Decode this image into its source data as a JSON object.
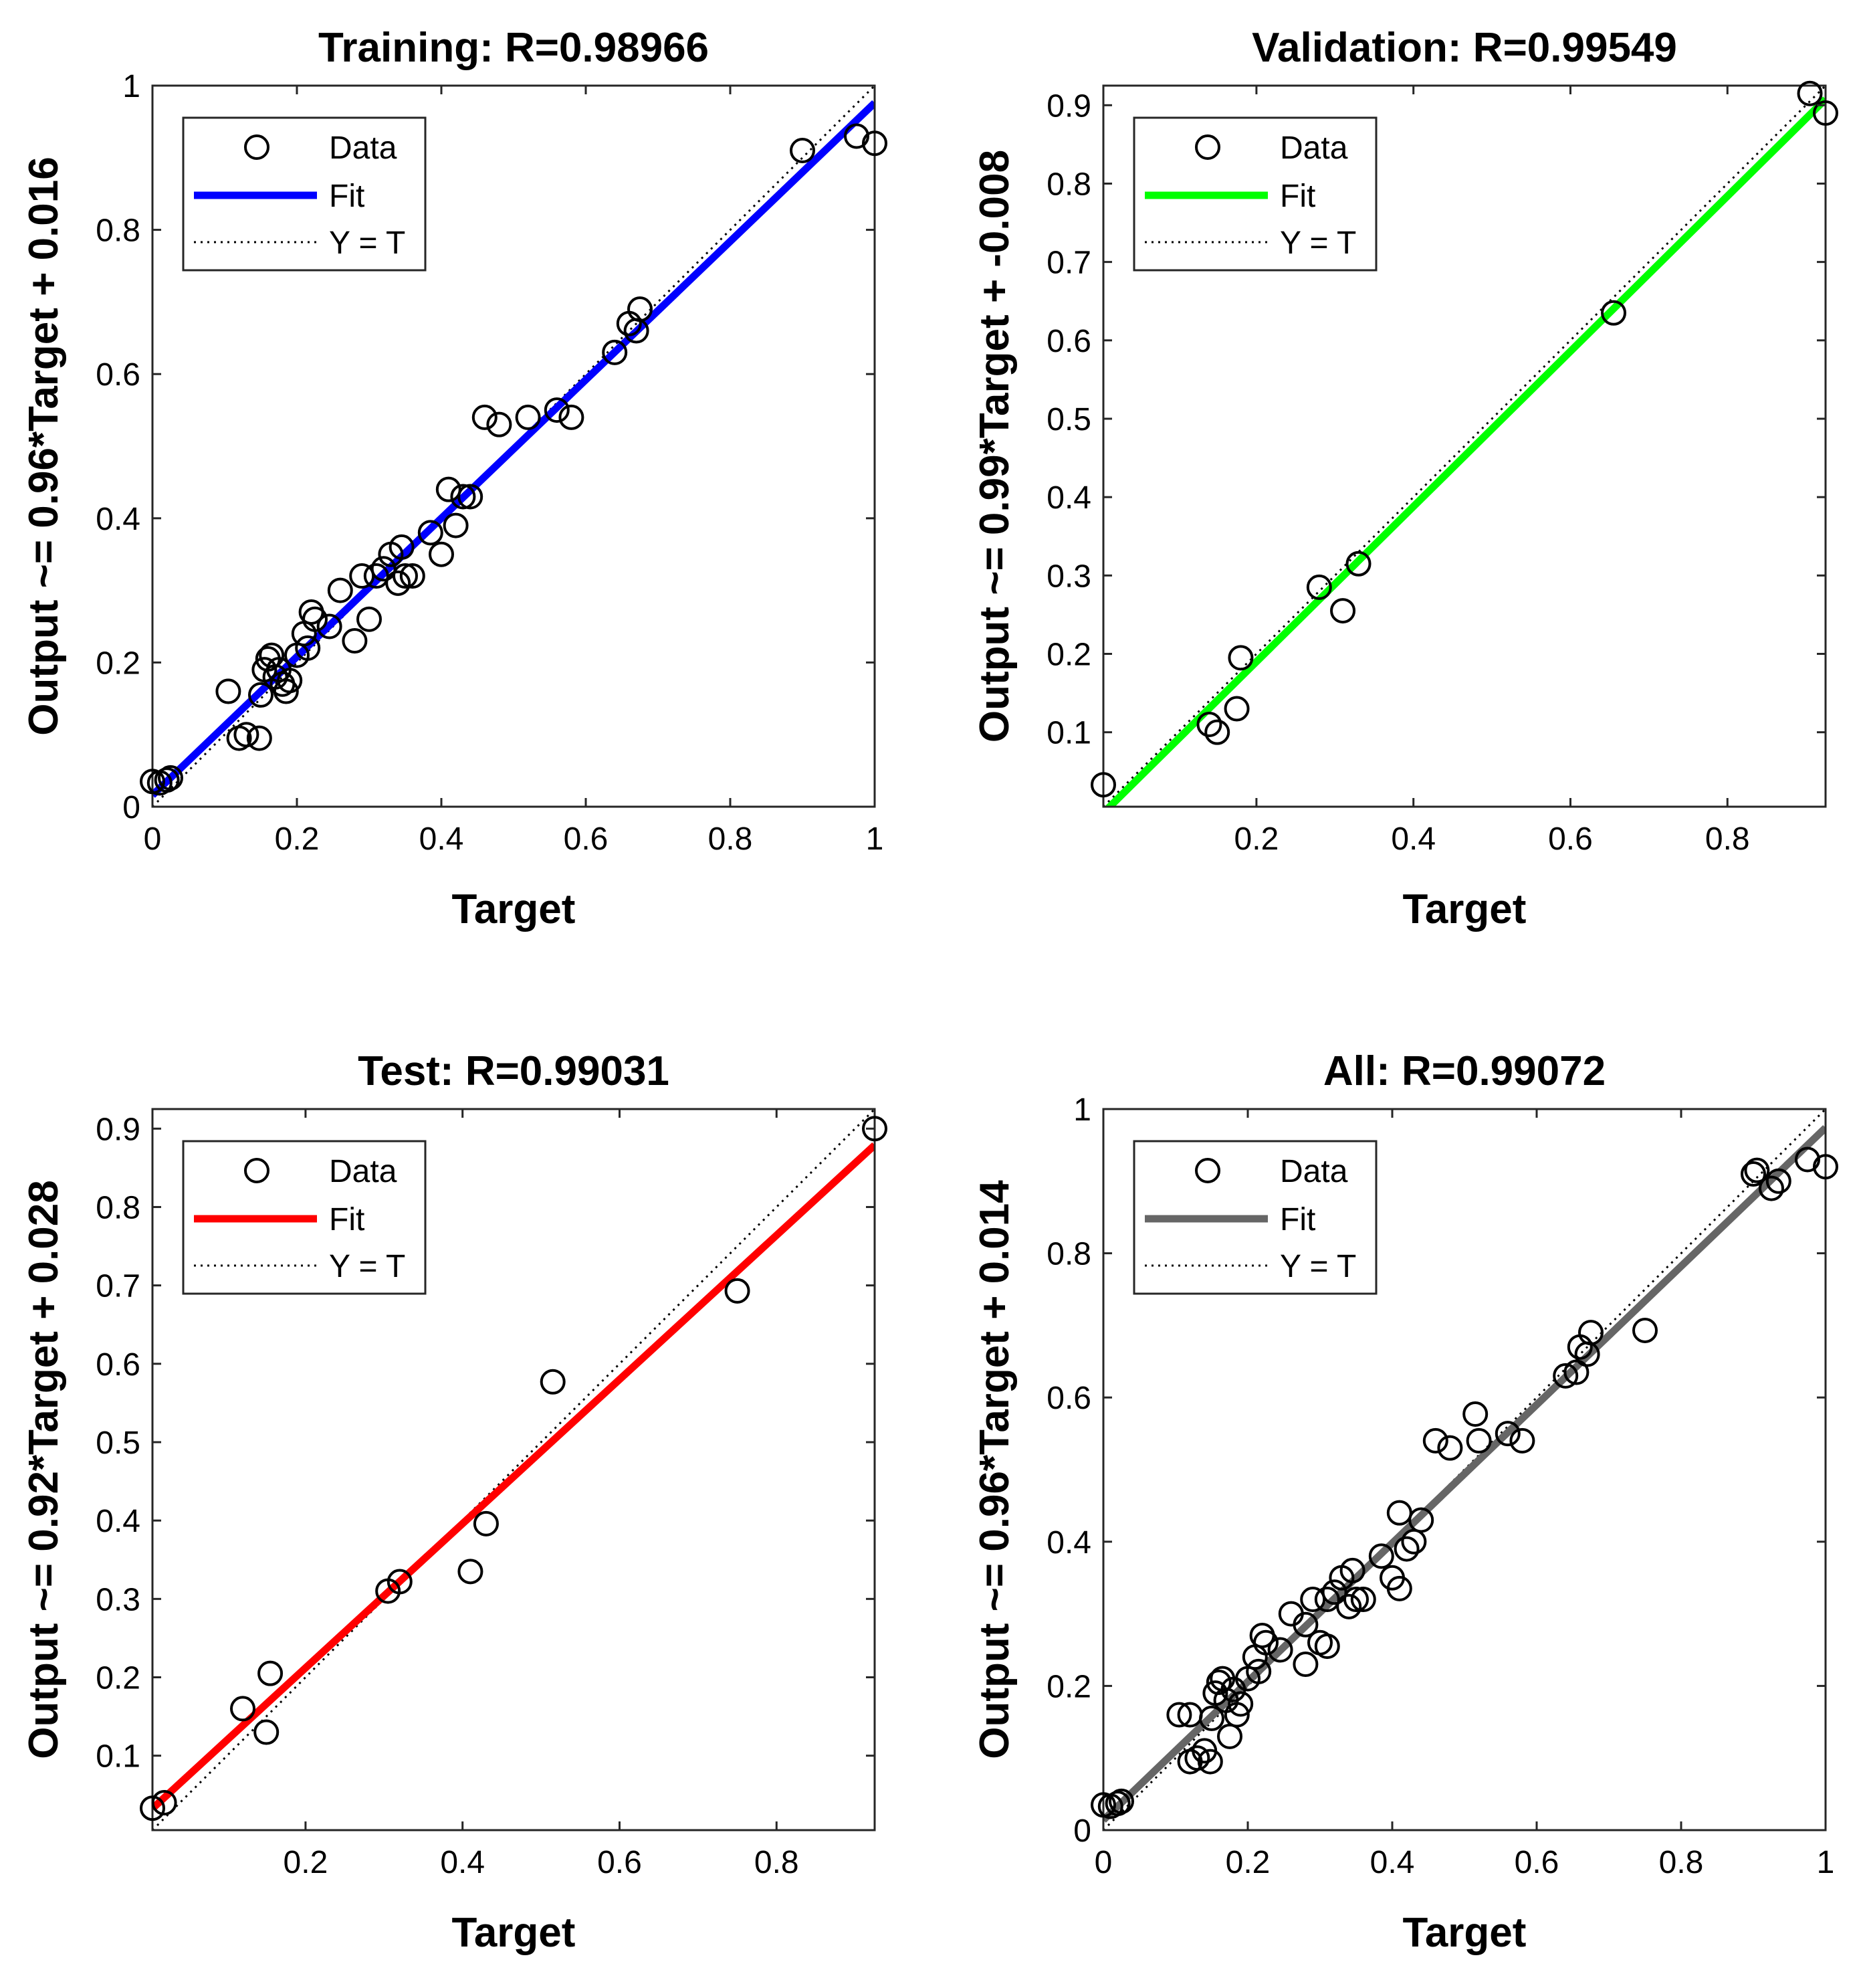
{
  "chart_data": [
    {
      "type": "scatter",
      "title": "Training: R=0.98966",
      "xlabel": "Target",
      "ylabel": "Output ~= 0.96*Target + 0.016",
      "xlim": [
        0,
        1
      ],
      "ylim": [
        0,
        1
      ],
      "xticks": [
        0,
        0.2,
        0.4,
        0.6,
        0.8,
        1
      ],
      "xtick_labels": [
        "0",
        "0.2",
        "0.4",
        "0.6",
        "0.8",
        "1"
      ],
      "yticks": [
        0,
        0.2,
        0.4,
        0.6,
        0.8,
        1
      ],
      "ytick_labels": [
        "0",
        "0.2",
        "0.4",
        "0.6",
        "0.8",
        "1"
      ],
      "fit": {
        "slope": 0.96,
        "intercept": 0.016,
        "color": "#0000ff"
      },
      "legend": [
        "Data",
        "Fit",
        "Y = T"
      ],
      "legend_position": "top-left",
      "points": [
        [
          0.0,
          0.035
        ],
        [
          0.01,
          0.033
        ],
        [
          0.02,
          0.037
        ],
        [
          0.025,
          0.04
        ],
        [
          0.105,
          0.16
        ],
        [
          0.12,
          0.095
        ],
        [
          0.13,
          0.1
        ],
        [
          0.148,
          0.095
        ],
        [
          0.15,
          0.155
        ],
        [
          0.155,
          0.19
        ],
        [
          0.16,
          0.205
        ],
        [
          0.165,
          0.21
        ],
        [
          0.17,
          0.18
        ],
        [
          0.175,
          0.19
        ],
        [
          0.18,
          0.17
        ],
        [
          0.185,
          0.16
        ],
        [
          0.19,
          0.175
        ],
        [
          0.2,
          0.21
        ],
        [
          0.21,
          0.24
        ],
        [
          0.215,
          0.22
        ],
        [
          0.22,
          0.27
        ],
        [
          0.225,
          0.26
        ],
        [
          0.245,
          0.25
        ],
        [
          0.26,
          0.3
        ],
        [
          0.28,
          0.23
        ],
        [
          0.29,
          0.32
        ],
        [
          0.3,
          0.26
        ],
        [
          0.31,
          0.32
        ],
        [
          0.32,
          0.33
        ],
        [
          0.33,
          0.35
        ],
        [
          0.34,
          0.31
        ],
        [
          0.345,
          0.36
        ],
        [
          0.35,
          0.32
        ],
        [
          0.36,
          0.32
        ],
        [
          0.385,
          0.38
        ],
        [
          0.4,
          0.35
        ],
        [
          0.41,
          0.44
        ],
        [
          0.42,
          0.39
        ],
        [
          0.43,
          0.43
        ],
        [
          0.44,
          0.43
        ],
        [
          0.46,
          0.54
        ],
        [
          0.48,
          0.53
        ],
        [
          0.52,
          0.54
        ],
        [
          0.56,
          0.55
        ],
        [
          0.58,
          0.54
        ],
        [
          0.64,
          0.63
        ],
        [
          0.66,
          0.67
        ],
        [
          0.675,
          0.69
        ],
        [
          0.67,
          0.66
        ],
        [
          0.9,
          0.91
        ],
        [
          0.975,
          0.93
        ],
        [
          1.0,
          0.92
        ]
      ]
    },
    {
      "type": "scatter",
      "title": "Validation: R=0.99549",
      "xlabel": "Target",
      "ylabel": "Output ~= 0.99*Target + -0.008",
      "xlim": [
        0.005,
        0.925
      ],
      "ylim": [
        0.005,
        0.925
      ],
      "xticks": [
        0.2,
        0.4,
        0.6,
        0.8
      ],
      "xtick_labels": [
        "0.2",
        "0.4",
        "0.6",
        "0.8"
      ],
      "yticks": [
        0.1,
        0.2,
        0.3,
        0.4,
        0.5,
        0.6,
        0.7,
        0.8,
        0.9
      ],
      "ytick_labels": [
        "0.1",
        "0.2",
        "0.3",
        "0.4",
        "0.5",
        "0.6",
        "0.7",
        "0.8",
        "0.9"
      ],
      "fit": {
        "slope": 0.99,
        "intercept": -0.008,
        "color": "#00ff00"
      },
      "legend": [
        "Data",
        "Fit",
        "Y = T"
      ],
      "legend_position": "top-left",
      "points": [
        [
          0.005,
          0.033
        ],
        [
          0.14,
          0.11
        ],
        [
          0.15,
          0.1
        ],
        [
          0.175,
          0.13
        ],
        [
          0.18,
          0.195
        ],
        [
          0.28,
          0.285
        ],
        [
          0.31,
          0.255
        ],
        [
          0.33,
          0.315
        ],
        [
          0.655,
          0.635
        ],
        [
          0.905,
          0.915
        ],
        [
          0.925,
          0.89
        ]
      ]
    },
    {
      "type": "scatter",
      "title": "Test: R=0.99031",
      "xlabel": "Target",
      "ylabel": "Output ~= 0.92*Target + 0.028",
      "xlim": [
        0.005,
        0.925
      ],
      "ylim": [
        0.005,
        0.925
      ],
      "xticks": [
        0.2,
        0.4,
        0.6,
        0.8
      ],
      "xtick_labels": [
        "0.2",
        "0.4",
        "0.6",
        "0.8"
      ],
      "yticks": [
        0.1,
        0.2,
        0.3,
        0.4,
        0.5,
        0.6,
        0.7,
        0.8,
        0.9
      ],
      "ytick_labels": [
        "0.1",
        "0.2",
        "0.3",
        "0.4",
        "0.5",
        "0.6",
        "0.7",
        "0.8",
        "0.9"
      ],
      "fit": {
        "slope": 0.92,
        "intercept": 0.028,
        "color": "#ff0000"
      },
      "legend": [
        "Data",
        "Fit",
        "Y = T"
      ],
      "legend_position": "top-left",
      "points": [
        [
          0.005,
          0.033
        ],
        [
          0.02,
          0.04
        ],
        [
          0.12,
          0.16
        ],
        [
          0.15,
          0.13
        ],
        [
          0.155,
          0.205
        ],
        [
          0.305,
          0.31
        ],
        [
          0.32,
          0.322
        ],
        [
          0.41,
          0.335
        ],
        [
          0.43,
          0.396
        ],
        [
          0.515,
          0.577
        ],
        [
          0.75,
          0.693
        ],
        [
          0.925,
          0.9
        ]
      ]
    },
    {
      "type": "scatter",
      "title": "All: R=0.99072",
      "xlabel": "Target",
      "ylabel": "Output ~= 0.96*Target + 0.014",
      "xlim": [
        0,
        1
      ],
      "ylim": [
        0,
        1
      ],
      "xticks": [
        0,
        0.2,
        0.4,
        0.6,
        0.8,
        1
      ],
      "xtick_labels": [
        "0",
        "0.2",
        "0.4",
        "0.6",
        "0.8",
        "1"
      ],
      "yticks": [
        0,
        0.2,
        0.4,
        0.6,
        0.8,
        1
      ],
      "ytick_labels": [
        "0",
        "0.2",
        "0.4",
        "0.6",
        "0.8",
        "1"
      ],
      "fit": {
        "slope": 0.96,
        "intercept": 0.014,
        "color": "#666666"
      },
      "legend": [
        "Data",
        "Fit",
        "Y = T"
      ],
      "legend_position": "top-left",
      "points": [
        [
          0.0,
          0.035
        ],
        [
          0.01,
          0.033
        ],
        [
          0.02,
          0.037
        ],
        [
          0.025,
          0.04
        ],
        [
          0.105,
          0.16
        ],
        [
          0.12,
          0.16
        ],
        [
          0.12,
          0.095
        ],
        [
          0.13,
          0.1
        ],
        [
          0.14,
          0.11
        ],
        [
          0.148,
          0.095
        ],
        [
          0.15,
          0.155
        ],
        [
          0.155,
          0.19
        ],
        [
          0.16,
          0.205
        ],
        [
          0.165,
          0.21
        ],
        [
          0.17,
          0.18
        ],
        [
          0.175,
          0.13
        ],
        [
          0.18,
          0.195
        ],
        [
          0.185,
          0.16
        ],
        [
          0.19,
          0.175
        ],
        [
          0.2,
          0.21
        ],
        [
          0.21,
          0.24
        ],
        [
          0.215,
          0.22
        ],
        [
          0.22,
          0.27
        ],
        [
          0.225,
          0.26
        ],
        [
          0.245,
          0.25
        ],
        [
          0.26,
          0.3
        ],
        [
          0.28,
          0.285
        ],
        [
          0.28,
          0.23
        ],
        [
          0.29,
          0.32
        ],
        [
          0.3,
          0.26
        ],
        [
          0.31,
          0.255
        ],
        [
          0.31,
          0.32
        ],
        [
          0.32,
          0.33
        ],
        [
          0.33,
          0.35
        ],
        [
          0.34,
          0.31
        ],
        [
          0.345,
          0.36
        ],
        [
          0.35,
          0.32
        ],
        [
          0.36,
          0.32
        ],
        [
          0.385,
          0.38
        ],
        [
          0.4,
          0.35
        ],
        [
          0.41,
          0.335
        ],
        [
          0.41,
          0.44
        ],
        [
          0.42,
          0.39
        ],
        [
          0.43,
          0.4
        ],
        [
          0.44,
          0.43
        ],
        [
          0.46,
          0.54
        ],
        [
          0.48,
          0.53
        ],
        [
          0.515,
          0.577
        ],
        [
          0.52,
          0.54
        ],
        [
          0.56,
          0.55
        ],
        [
          0.58,
          0.54
        ],
        [
          0.64,
          0.63
        ],
        [
          0.655,
          0.635
        ],
        [
          0.66,
          0.67
        ],
        [
          0.675,
          0.69
        ],
        [
          0.67,
          0.66
        ],
        [
          0.75,
          0.693
        ],
        [
          0.9,
          0.91
        ],
        [
          0.905,
          0.915
        ],
        [
          0.925,
          0.89
        ],
        [
          0.935,
          0.9
        ],
        [
          0.975,
          0.93
        ],
        [
          1.0,
          0.92
        ]
      ]
    }
  ]
}
